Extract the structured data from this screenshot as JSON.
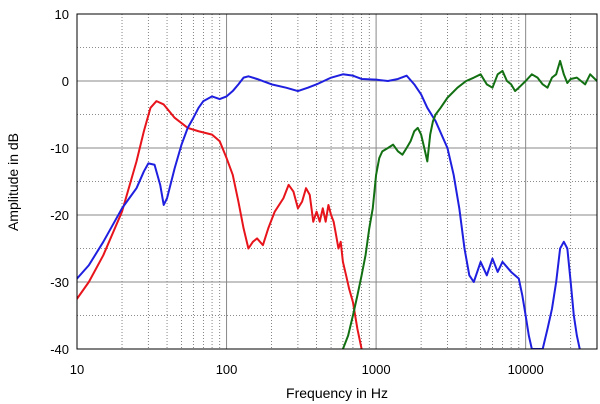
{
  "chart_data": {
    "type": "line",
    "title": "",
    "xlabel": "Frequency in Hz",
    "ylabel": "Amplitude in dB",
    "xscale": "log",
    "xlim": [
      10,
      30000
    ],
    "ylim": [
      -40,
      10
    ],
    "grid": true,
    "legend": "none",
    "x_tick_labels": [
      {
        "value": 10,
        "label": "10"
      },
      {
        "value": 100,
        "label": "100"
      },
      {
        "value": 1000,
        "label": "1000"
      },
      {
        "value": 10000,
        "label": "10000"
      }
    ],
    "y_tick_labels": [
      {
        "value": 10,
        "label": "10"
      },
      {
        "value": 0,
        "label": "0"
      },
      {
        "value": -10,
        "label": "-10"
      },
      {
        "value": -20,
        "label": "-20"
      },
      {
        "value": -30,
        "label": "-30"
      },
      {
        "value": -40,
        "label": "-40"
      }
    ],
    "series": [
      {
        "color": "#e8141b",
        "points": [
          [
            10,
            -32.5
          ],
          [
            12,
            -30
          ],
          [
            15,
            -26
          ],
          [
            20,
            -19.5
          ],
          [
            25,
            -12
          ],
          [
            28,
            -7.5
          ],
          [
            31,
            -4
          ],
          [
            34,
            -3
          ],
          [
            38,
            -3.5
          ],
          [
            45,
            -5.5
          ],
          [
            55,
            -7
          ],
          [
            65,
            -7.5
          ],
          [
            80,
            -8
          ],
          [
            90,
            -9
          ],
          [
            100,
            -11.5
          ],
          [
            110,
            -14
          ],
          [
            120,
            -18
          ],
          [
            130,
            -22
          ],
          [
            140,
            -25
          ],
          [
            150,
            -24
          ],
          [
            160,
            -23.5
          ],
          [
            175,
            -24.5
          ],
          [
            190,
            -22
          ],
          [
            210,
            -19.5
          ],
          [
            240,
            -17.5
          ],
          [
            260,
            -15.5
          ],
          [
            280,
            -16.5
          ],
          [
            300,
            -19
          ],
          [
            320,
            -18
          ],
          [
            340,
            -16
          ],
          [
            360,
            -17
          ],
          [
            380,
            -21
          ],
          [
            400,
            -19.5
          ],
          [
            420,
            -21
          ],
          [
            440,
            -19
          ],
          [
            460,
            -21
          ],
          [
            480,
            -18.5
          ],
          [
            500,
            -20
          ],
          [
            520,
            -21
          ],
          [
            540,
            -23
          ],
          [
            560,
            -25
          ],
          [
            580,
            -24
          ],
          [
            600,
            -27
          ],
          [
            630,
            -29
          ],
          [
            660,
            -31
          ],
          [
            700,
            -33
          ],
          [
            750,
            -37
          ],
          [
            800,
            -40
          ]
        ]
      },
      {
        "color": "#1f1fe0",
        "points": [
          [
            10,
            -29.5
          ],
          [
            12,
            -27.5
          ],
          [
            15,
            -24
          ],
          [
            20,
            -19
          ],
          [
            25,
            -16
          ],
          [
            28,
            -13.5
          ],
          [
            30,
            -12.3
          ],
          [
            33,
            -12.5
          ],
          [
            36,
            -15.5
          ],
          [
            38,
            -18.5
          ],
          [
            40,
            -17.5
          ],
          [
            45,
            -13
          ],
          [
            50,
            -9.5
          ],
          [
            55,
            -7
          ],
          [
            60,
            -5.5
          ],
          [
            65,
            -4
          ],
          [
            70,
            -3
          ],
          [
            80,
            -2.3
          ],
          [
            90,
            -2.7
          ],
          [
            100,
            -2.3
          ],
          [
            110,
            -1.5
          ],
          [
            120,
            -0.5
          ],
          [
            130,
            0.5
          ],
          [
            140,
            0.7
          ],
          [
            160,
            0.3
          ],
          [
            200,
            -0.5
          ],
          [
            250,
            -1
          ],
          [
            300,
            -1.5
          ],
          [
            350,
            -1
          ],
          [
            400,
            -0.5
          ],
          [
            500,
            0.5
          ],
          [
            600,
            1
          ],
          [
            700,
            0.8
          ],
          [
            800,
            0.3
          ],
          [
            1000,
            0.2
          ],
          [
            1200,
            0
          ],
          [
            1400,
            0.3
          ],
          [
            1600,
            0.8
          ],
          [
            1800,
            -0.5
          ],
          [
            2000,
            -2
          ],
          [
            2200,
            -4
          ],
          [
            2500,
            -6
          ],
          [
            3000,
            -10
          ],
          [
            3300,
            -14
          ],
          [
            3600,
            -19
          ],
          [
            3900,
            -25
          ],
          [
            4200,
            -29
          ],
          [
            4500,
            -30
          ],
          [
            5000,
            -27
          ],
          [
            5500,
            -29
          ],
          [
            6000,
            -26.5
          ],
          [
            6500,
            -28.5
          ],
          [
            7000,
            -27
          ],
          [
            8000,
            -28.5
          ],
          [
            9000,
            -29.5
          ],
          [
            9500,
            -32
          ],
          [
            10000,
            -35
          ],
          [
            10500,
            -38
          ],
          [
            11000,
            -40
          ],
          [
            13000,
            -40
          ],
          [
            14000,
            -37
          ],
          [
            15000,
            -34
          ],
          [
            16000,
            -30
          ],
          [
            17000,
            -25
          ],
          [
            18000,
            -24
          ],
          [
            19000,
            -25
          ],
          [
            20000,
            -30
          ],
          [
            21000,
            -35
          ],
          [
            22000,
            -38
          ],
          [
            23000,
            -40
          ]
        ]
      },
      {
        "color": "#127012",
        "points": [
          [
            600,
            -40
          ],
          [
            650,
            -38
          ],
          [
            700,
            -35
          ],
          [
            750,
            -32
          ],
          [
            800,
            -29
          ],
          [
            850,
            -26
          ],
          [
            900,
            -22
          ],
          [
            950,
            -19
          ],
          [
            1000,
            -14
          ],
          [
            1050,
            -11.5
          ],
          [
            1100,
            -10.5
          ],
          [
            1200,
            -10
          ],
          [
            1300,
            -9.5
          ],
          [
            1400,
            -10.5
          ],
          [
            1500,
            -11
          ],
          [
            1600,
            -10
          ],
          [
            1700,
            -9
          ],
          [
            1800,
            -7.5
          ],
          [
            1900,
            -7
          ],
          [
            2000,
            -8
          ],
          [
            2100,
            -10
          ],
          [
            2200,
            -12
          ],
          [
            2300,
            -8
          ],
          [
            2400,
            -6
          ],
          [
            2500,
            -5
          ],
          [
            2700,
            -4
          ],
          [
            3000,
            -2.5
          ],
          [
            3500,
            -1
          ],
          [
            4000,
            0
          ],
          [
            4500,
            0.5
          ],
          [
            5000,
            1
          ],
          [
            5500,
            -0.5
          ],
          [
            6000,
            -1
          ],
          [
            6500,
            1
          ],
          [
            7000,
            1.5
          ],
          [
            7500,
            0
          ],
          [
            8000,
            -0.5
          ],
          [
            8500,
            -1.5
          ],
          [
            9000,
            -1
          ],
          [
            10000,
            0
          ],
          [
            11000,
            1
          ],
          [
            12000,
            0.5
          ],
          [
            13000,
            -0.5
          ],
          [
            14000,
            -1
          ],
          [
            15000,
            0.5
          ],
          [
            16000,
            1
          ],
          [
            17000,
            3
          ],
          [
            18000,
            1
          ],
          [
            19000,
            -0.3
          ],
          [
            20000,
            0.3
          ],
          [
            22000,
            0.5
          ],
          [
            25000,
            -0.5
          ],
          [
            27000,
            1
          ],
          [
            30000,
            0
          ]
        ]
      }
    ]
  }
}
